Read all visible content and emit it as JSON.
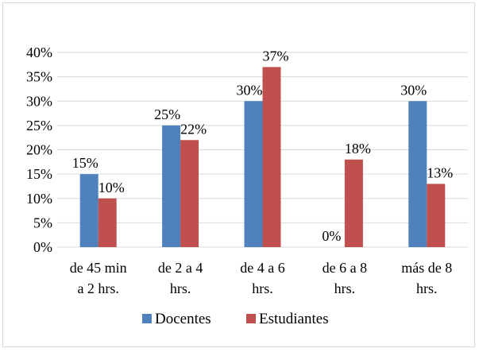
{
  "chart_data": {
    "type": "bar",
    "categories": [
      [
        "de 45 min",
        "a 2 hrs."
      ],
      [
        "de 2 a 4",
        "hrs."
      ],
      [
        "de 4 a 6",
        "hrs."
      ],
      [
        "de 6 a 8",
        "hrs."
      ],
      [
        "más de 8",
        "hrs."
      ]
    ],
    "series": [
      {
        "name": "Docentes",
        "color": "#4f81bd",
        "values": [
          15,
          25,
          30,
          0,
          30
        ],
        "labels": [
          "15%",
          "25%",
          "30%",
          "0%",
          "30%"
        ]
      },
      {
        "name": "Estudiantes",
        "color": "#c0504d",
        "values": [
          10,
          22,
          37,
          18,
          13
        ],
        "labels": [
          "10%",
          "22%",
          "37%",
          "18%",
          "13%"
        ]
      }
    ],
    "y_ticks": [
      0,
      5,
      10,
      15,
      20,
      25,
      30,
      35,
      40
    ],
    "y_tick_labels": [
      "0%",
      "5%",
      "10%",
      "15%",
      "20%",
      "25%",
      "30%",
      "35%",
      "40%"
    ],
    "ylim": [
      0,
      40
    ],
    "grid": true,
    "legend_position": "bottom",
    "title": "",
    "xlabel": "",
    "ylabel": ""
  }
}
